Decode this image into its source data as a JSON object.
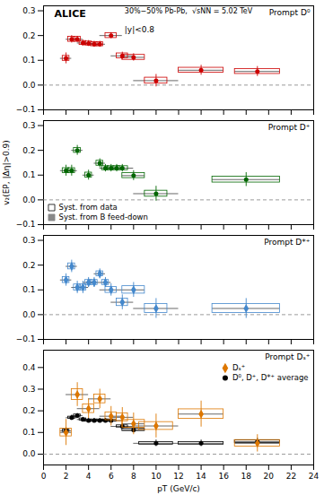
{
  "chart_data": [
    {
      "type": "scatter",
      "title": "Prompt D⁰",
      "annotations": [
        "ALICE",
        "30%−50% Pb-Pb,  √sNN = 5.02 TeV",
        "|y|<0.8"
      ],
      "xlim": [
        0,
        24
      ],
      "xticks": [
        0,
        2,
        4,
        6,
        8,
        10,
        12,
        14,
        16,
        18,
        20,
        22,
        24
      ],
      "ylim": [
        -0.1,
        0.32
      ],
      "yticks": [
        -0.1,
        {
          "value": 0,
          "label": "0.0"
        },
        0.1,
        0.2,
        0.3
      ],
      "tick_labels": "y",
      "hline": {
        "value": 0,
        "color": "gray",
        "line_style": "dashed"
      },
      "series": [
        {
          "color": "#cc0000",
          "marker": "circle",
          "x": [
            2.0,
            2.5,
            3.0,
            3.5,
            4.0,
            4.5,
            5.0,
            6.0,
            7.0,
            8.0,
            10.0,
            14.0,
            19.0
          ],
          "values": [
            0.108,
            0.185,
            0.185,
            0.17,
            0.168,
            0.165,
            0.165,
            0.2,
            0.118,
            0.112,
            0.018,
            0.06,
            0.055
          ],
          "stat_err": [
            0.022,
            0.015,
            0.012,
            0.012,
            0.012,
            0.012,
            0.012,
            0.012,
            0.015,
            0.015,
            0.025,
            0.02,
            0.02
          ],
          "syst_err": [
            0.01,
            0.01,
            0.01,
            0.008,
            0.008,
            0.008,
            0.008,
            0.01,
            0.01,
            0.01,
            0.012,
            0.01,
            0.01
          ],
          "syst_halfwidth": [
            0.3,
            0.3,
            0.3,
            0.3,
            0.3,
            0.3,
            0.3,
            0.5,
            0.5,
            1.0,
            1.0,
            2.0,
            2.0
          ],
          "x_err": [
            0.5,
            0.5,
            0.5,
            0.5,
            0.5,
            0.5,
            0.5,
            1.0,
            1.0,
            1.0,
            2.0,
            2.0,
            2.0
          ]
        }
      ]
    },
    {
      "type": "scatter",
      "title": "Prompt D⁺",
      "ylabel": "v₂(EP, |Δη|>0.9)",
      "xlim": [
        0,
        24
      ],
      "xticks": [
        0,
        2,
        4,
        6,
        8,
        10,
        12,
        14,
        16,
        18,
        20,
        22,
        24
      ],
      "ylim": [
        -0.1,
        0.32
      ],
      "yticks": [
        -0.1,
        {
          "value": 0,
          "label": "0.0"
        },
        0.1,
        0.2,
        0.3
      ],
      "tick_labels": "y",
      "hline": {
        "value": 0,
        "color": "gray",
        "line_style": "dashed"
      },
      "legend": "lower left",
      "legend_items": [
        {
          "name": "Syst. from data",
          "color": "#000000",
          "marker": "square_open"
        },
        {
          "name": "Syst. from B feed-down",
          "color": "#888888",
          "marker": "square"
        }
      ],
      "series": [
        {
          "color": "#006600",
          "marker": "circle",
          "x": [
            2.0,
            2.5,
            3.0,
            4.0,
            5.0,
            5.5,
            6.0,
            6.5,
            7.0,
            8.0,
            10.0,
            18.0
          ],
          "values": [
            0.118,
            0.118,
            0.2,
            0.1,
            0.148,
            0.128,
            0.128,
            0.128,
            0.128,
            0.098,
            0.025,
            0.082
          ],
          "stat_err": [
            0.022,
            0.022,
            0.02,
            0.02,
            0.018,
            0.015,
            0.015,
            0.015,
            0.015,
            0.02,
            0.03,
            0.028
          ],
          "syst_err": [
            0.01,
            0.01,
            0.01,
            0.01,
            0.01,
            0.008,
            0.008,
            0.008,
            0.008,
            0.01,
            0.012,
            0.012
          ],
          "syst_halfwidth": [
            0.3,
            0.3,
            0.3,
            0.3,
            0.3,
            0.3,
            0.3,
            0.3,
            0.5,
            1.0,
            1.0,
            3.0
          ],
          "x_err": [
            0.5,
            0.5,
            0.5,
            0.5,
            0.5,
            0.5,
            0.5,
            0.5,
            1.0,
            1.0,
            2.0,
            3.0
          ]
        }
      ]
    },
    {
      "type": "scatter",
      "title": "Prompt D*⁺",
      "xlim": [
        0,
        24
      ],
      "xticks": [
        0,
        2,
        4,
        6,
        8,
        10,
        12,
        14,
        16,
        18,
        20,
        22,
        24
      ],
      "ylim": [
        -0.1,
        0.32
      ],
      "yticks": [
        -0.1,
        {
          "value": 0,
          "label": "0.0"
        },
        0.1,
        0.2,
        0.3
      ],
      "tick_labels": "y",
      "hline": {
        "value": 0,
        "color": "gray",
        "line_style": "dashed"
      },
      "series": [
        {
          "color": "#4488cc",
          "marker": "diamond",
          "x": [
            2.0,
            2.5,
            3.0,
            3.5,
            4.0,
            4.5,
            5.0,
            5.5,
            6.0,
            7.0,
            8.0,
            10.0,
            18.0
          ],
          "values": [
            0.14,
            0.195,
            0.11,
            0.11,
            0.13,
            0.13,
            0.165,
            0.13,
            0.1,
            0.05,
            0.1,
            0.025,
            0.025
          ],
          "stat_err": [
            0.025,
            0.025,
            0.025,
            0.025,
            0.02,
            0.02,
            0.02,
            0.02,
            0.025,
            0.03,
            0.03,
            0.04,
            0.04
          ],
          "syst_err": [
            0.012,
            0.012,
            0.012,
            0.012,
            0.01,
            0.01,
            0.01,
            0.01,
            0.012,
            0.015,
            0.015,
            0.018,
            0.018
          ],
          "syst_halfwidth": [
            0.3,
            0.3,
            0.3,
            0.3,
            0.3,
            0.3,
            0.3,
            0.3,
            0.5,
            0.5,
            1.0,
            1.0,
            3.0
          ],
          "x_err": [
            0.5,
            0.5,
            0.5,
            0.5,
            0.5,
            0.5,
            0.5,
            0.5,
            1.0,
            1.0,
            1.0,
            2.0,
            3.0
          ]
        }
      ]
    },
    {
      "type": "scatter",
      "title": "Prompt Dₛ⁺",
      "xlabel": "pT (GeV/c)",
      "xlim": [
        0,
        24
      ],
      "xticks": [
        0,
        2,
        4,
        6,
        8,
        10,
        12,
        14,
        16,
        18,
        20,
        22,
        24
      ],
      "ylim": [
        -0.05,
        0.48
      ],
      "yticks": [
        {
          "value": 0,
          "label": "0.0"
        },
        0.1,
        0.2,
        0.3,
        0.4
      ],
      "hline": {
        "value": 0,
        "color": "gray",
        "line_style": "dashed"
      },
      "legend": "upper right",
      "series": [
        {
          "name": "Dₛ⁺",
          "color": "#dd7700",
          "marker": "diamond",
          "x": [
            2.0,
            3.0,
            4.0,
            5.0,
            6.0,
            7.0,
            8.0,
            10.0,
            14.0,
            19.0
          ],
          "values": [
            0.1,
            0.275,
            0.21,
            0.255,
            0.175,
            0.17,
            0.14,
            0.13,
            0.185,
            0.05
          ],
          "stat_err": [
            0.06,
            0.055,
            0.045,
            0.045,
            0.045,
            0.045,
            0.05,
            0.055,
            0.06,
            0.04
          ],
          "syst_err": [
            0.018,
            0.025,
            0.02,
            0.02,
            0.018,
            0.018,
            0.018,
            0.018,
            0.022,
            0.015
          ],
          "syst_halfwidth": [
            0.5,
            0.5,
            0.5,
            0.5,
            0.5,
            0.5,
            1.0,
            1.5,
            2.0,
            2.0
          ],
          "x_err": [
            0.5,
            1.0,
            1.0,
            1.0,
            1.0,
            1.0,
            1.0,
            2.0,
            2.0,
            2.0
          ]
        },
        {
          "name": "D⁰, D⁺, D*⁺ average",
          "color": "#000000",
          "marker": "circle",
          "x": [
            2.0,
            2.5,
            3.0,
            3.5,
            4.0,
            4.5,
            5.0,
            5.5,
            6.0,
            7.0,
            8.0,
            10.0,
            14.0,
            19.0
          ],
          "values": [
            0.108,
            0.168,
            0.178,
            0.16,
            0.155,
            0.155,
            0.155,
            0.155,
            0.155,
            0.128,
            0.112,
            0.05,
            0.05,
            0.058
          ],
          "stat_err": [
            0.015,
            0.012,
            0.01,
            0.01,
            0.01,
            0.01,
            0.01,
            0.01,
            0.01,
            0.012,
            0.012,
            0.015,
            0.015,
            0.015
          ],
          "syst_err": [
            0.005,
            0.005,
            0.005,
            0.005,
            0.005,
            0.005,
            0.005,
            0.005,
            0.005,
            0.005,
            0.005,
            0.006,
            0.006,
            0.006
          ],
          "syst_halfwidth": [
            0.3,
            0.3,
            0.3,
            0.3,
            0.3,
            0.3,
            0.3,
            0.3,
            0.5,
            0.5,
            1.0,
            1.5,
            2.0,
            2.0
          ],
          "x_err": [
            0.5,
            0.5,
            0.5,
            0.5,
            0.5,
            0.5,
            0.5,
            0.5,
            1.0,
            1.0,
            1.0,
            2.0,
            2.0,
            2.0
          ]
        }
      ]
    }
  ]
}
